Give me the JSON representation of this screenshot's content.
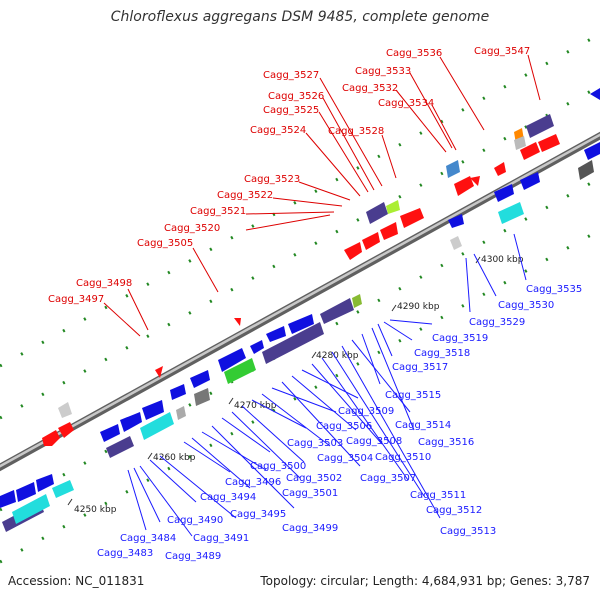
{
  "title": "Chloroflexus aggregans DSM 9485, complete genome",
  "footer": {
    "accession": "Accession: NC_011831",
    "topology": "Topology: circular; Length: 4,684,931 bp; Genes: 3,787"
  },
  "colors": {
    "top_label": "#dd0000",
    "bottom_label": "#1a1aff",
    "backbone": "#909090",
    "forward_arrow": "#ff0000",
    "reverse_arrow": "#1010e0",
    "operon_purple": "#4a3d8f",
    "cyan_block": "#22dddd",
    "green_block": "#33cc33"
  },
  "ticks": [
    "4250 kbp",
    "4260 kbp",
    "4270 kbp",
    "4280 kbp",
    "4290 kbp",
    "4300 kbp"
  ],
  "top_genes": [
    "Cagg_3497",
    "Cagg_3498",
    "Cagg_3505",
    "Cagg_3520",
    "Cagg_3521",
    "Cagg_3522",
    "Cagg_3523",
    "Cagg_3524",
    "Cagg_3525",
    "Cagg_3526",
    "Cagg_3527",
    "Cagg_3528",
    "Cagg_3532",
    "Cagg_3533",
    "Cagg_3534",
    "Cagg_3536",
    "Cagg_3547"
  ],
  "bottom_genes": [
    "Cagg_3483",
    "Cagg_3484",
    "Cagg_3489",
    "Cagg_3490",
    "Cagg_3491",
    "Cagg_3494",
    "Cagg_3495",
    "Cagg_3496",
    "Cagg_3499",
    "Cagg_3500",
    "Cagg_3501",
    "Cagg_3502",
    "Cagg_3503",
    "Cagg_3504",
    "Cagg_3506",
    "Cagg_3507",
    "Cagg_3508",
    "Cagg_3509",
    "Cagg_3510",
    "Cagg_3511",
    "Cagg_3512",
    "Cagg_3513",
    "Cagg_3514",
    "Cagg_3515",
    "Cagg_3516",
    "Cagg_3517",
    "Cagg_3518",
    "Cagg_3519",
    "Cagg_3529",
    "Cagg_3530",
    "Cagg_3535"
  ]
}
